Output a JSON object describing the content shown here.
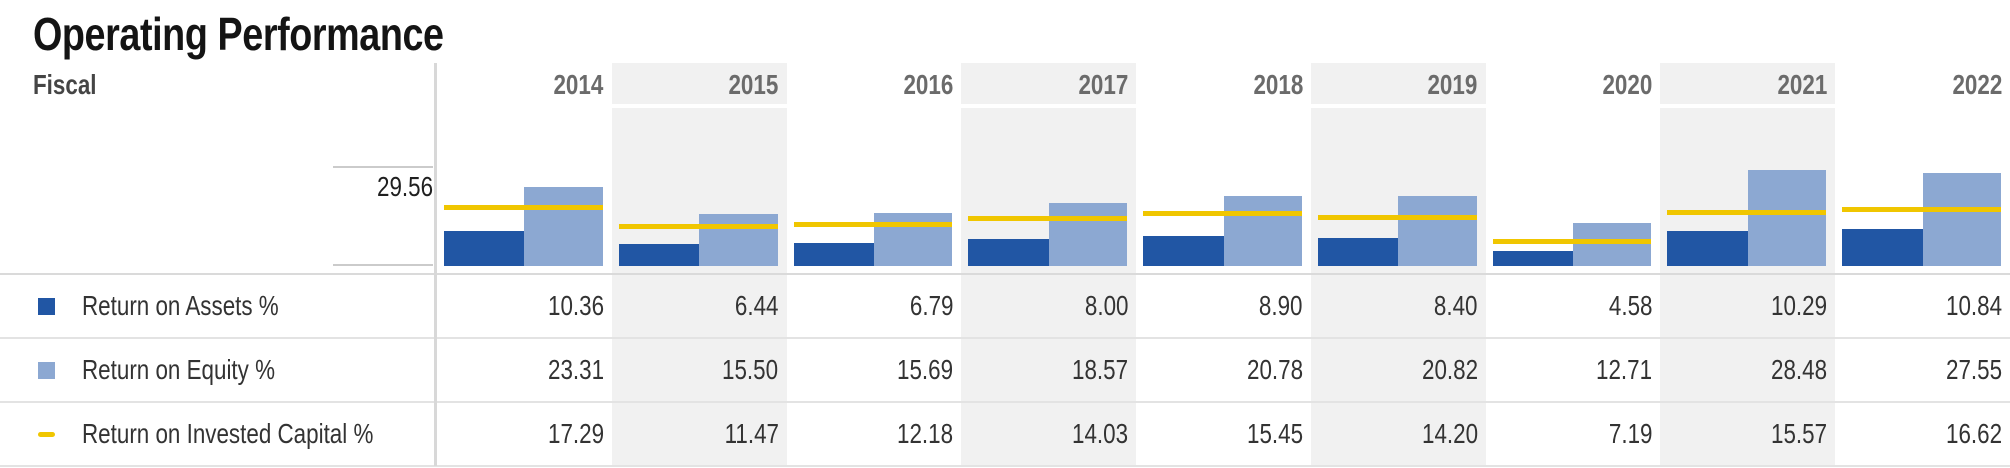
{
  "title": "Operating Performance",
  "header": {
    "fiscal_label": "Fiscal",
    "years": [
      "2014",
      "2015",
      "2016",
      "2017",
      "2018",
      "2019",
      "2020",
      "2021",
      "2022"
    ]
  },
  "axis": {
    "max_label": "29.56"
  },
  "colors": {
    "roa": "#2156A4",
    "roe": "#8CA8D2",
    "roic": "#F0C600",
    "column_shade": "#F1F1F1"
  },
  "legend_rows": [
    {
      "label": "Return on Assets %",
      "swatch": "roa-square",
      "values": [
        "10.36",
        "6.44",
        "6.79",
        "8.00",
        "8.90",
        "8.40",
        "4.58",
        "10.29",
        "10.84"
      ]
    },
    {
      "label": "Return on Equity %",
      "swatch": "roe-square",
      "values": [
        "23.31",
        "15.50",
        "15.69",
        "18.57",
        "20.78",
        "20.82",
        "12.71",
        "28.48",
        "27.55"
      ]
    },
    {
      "label": "Return on Invested Capital %",
      "swatch": "roic-dash",
      "values": [
        "17.29",
        "11.47",
        "12.18",
        "14.03",
        "15.45",
        "14.20",
        "7.19",
        "15.57",
        "16.62"
      ]
    }
  ],
  "chart_data": {
    "type": "bar",
    "categories": [
      "2014",
      "2015",
      "2016",
      "2017",
      "2018",
      "2019",
      "2020",
      "2021",
      "2022"
    ],
    "series": [
      {
        "name": "Return on Assets %",
        "type": "bar",
        "color": "#2156A4",
        "values": [
          10.36,
          6.44,
          6.79,
          8.0,
          8.9,
          8.4,
          4.58,
          10.29,
          10.84
        ]
      },
      {
        "name": "Return on Equity %",
        "type": "bar",
        "color": "#8CA8D2",
        "values": [
          23.31,
          15.5,
          15.69,
          18.57,
          20.78,
          20.82,
          12.71,
          28.48,
          27.55
        ]
      },
      {
        "name": "Return on Invested Capital %",
        "type": "line",
        "color": "#F0C600",
        "values": [
          17.29,
          11.47,
          12.18,
          14.03,
          15.45,
          14.2,
          7.19,
          15.57,
          16.62
        ]
      }
    ],
    "title": "Operating Performance",
    "xlabel": "Fiscal",
    "ylabel": "",
    "ylim": [
      0,
      29.56
    ],
    "y_axis_labels": [
      "29.56"
    ],
    "grid": false,
    "legend_position": "left-row-labels",
    "column_shading": "alternate years shaded light gray (2015, 2017, 2019, 2021)"
  }
}
